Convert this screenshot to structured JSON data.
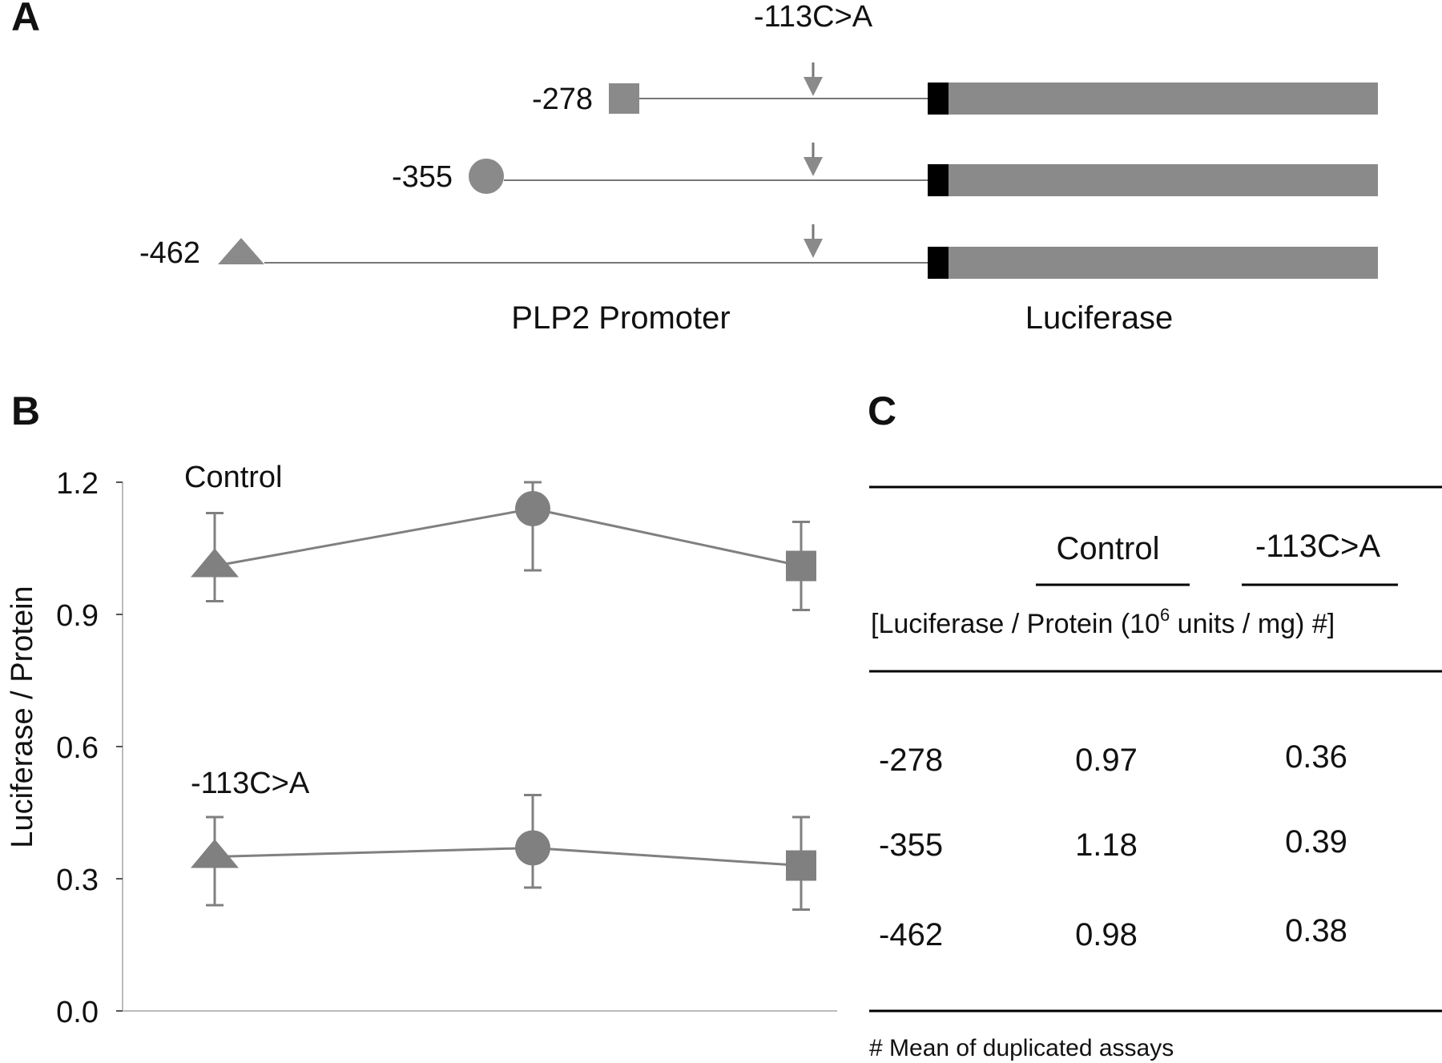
{
  "panel_a": {
    "letter": "A",
    "mutation_label": "-113C>A",
    "constructs": [
      {
        "label": "-278",
        "marker": "square"
      },
      {
        "label": "-355",
        "marker": "circle"
      },
      {
        "label": "-462",
        "marker": "triangle"
      }
    ],
    "promoter_label": "PLP2 Promoter",
    "luciferase_label": "Luciferase",
    "colors": {
      "gray": "#8a8a8a",
      "black": "#000000"
    }
  },
  "panel_b": {
    "letter": "B"
  },
  "chart_data": {
    "type": "line",
    "ylabel": "Luciferase / Protein",
    "xlabel": "",
    "ylim": [
      0,
      1.2
    ],
    "yticks": [
      "0.0",
      "0.3",
      "0.6",
      "0.9",
      "1.2"
    ],
    "grid": false,
    "series": [
      {
        "name": "Control",
        "points": [
          {
            "marker": "triangle",
            "y": 1.01,
            "err_low": 0.93,
            "err_high": 1.13
          },
          {
            "marker": "circle",
            "y": 1.14,
            "err_low": 1.0,
            "err_high": 1.2
          },
          {
            "marker": "square",
            "y": 1.01,
            "err_low": 0.91,
            "err_high": 1.11
          }
        ]
      },
      {
        "name": "-113C>A",
        "points": [
          {
            "marker": "triangle",
            "y": 0.35,
            "err_low": 0.24,
            "err_high": 0.44
          },
          {
            "marker": "circle",
            "y": 0.37,
            "err_low": 0.28,
            "err_high": 0.49
          },
          {
            "marker": "square",
            "y": 0.33,
            "err_low": 0.23,
            "err_high": 0.44
          }
        ]
      }
    ],
    "color": "#808080"
  },
  "panel_c": {
    "letter": "C",
    "headers": [
      "Control",
      "-113C>A"
    ],
    "unit_text_prefix": "[Luciferase / Protein (10",
    "unit_superscript": "6",
    "unit_text_suffix": " units / mg) #]",
    "rows": [
      {
        "label": "-278",
        "control": "0.97",
        "mutant": "0.36"
      },
      {
        "label": "-355",
        "control": "1.18",
        "mutant": "0.39"
      },
      {
        "label": "-462",
        "control": "0.98",
        "mutant": "0.38"
      }
    ],
    "footnote": "#  Mean of duplicated assays"
  }
}
